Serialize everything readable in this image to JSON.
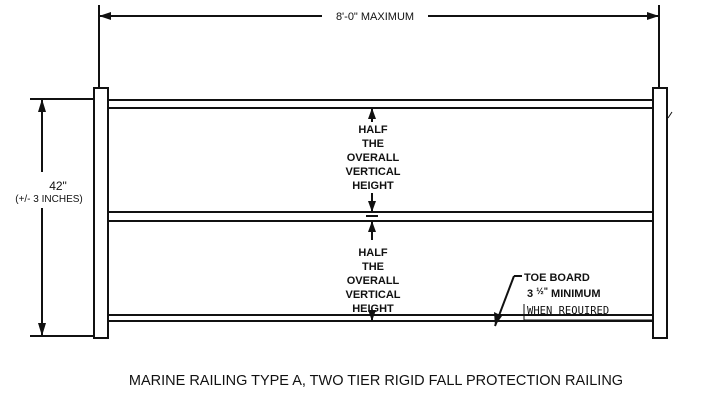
{
  "diagram": {
    "width_label": "8'-0\" MAXIMUM",
    "height_label": "42\"",
    "height_tolerance": "(+/- 3 INCHES)",
    "upper_note": [
      "HALF",
      "THE",
      "OVERALL",
      "VERTICAL",
      "HEIGHT"
    ],
    "lower_note": [
      "HALF",
      "THE",
      "OVERALL",
      "VERTICAL",
      "HEIGHT"
    ],
    "toe_board": {
      "line1": "TOE BOARD",
      "line2_prefix": "3 ",
      "line2_fraction": "½\"",
      "line2_suffix": " MINIMUM",
      "line3": "WHEN REQUIRED"
    },
    "caption": "MARINE RAILING TYPE A, TWO TIER RIGID FALL PROTECTION RAILING"
  }
}
